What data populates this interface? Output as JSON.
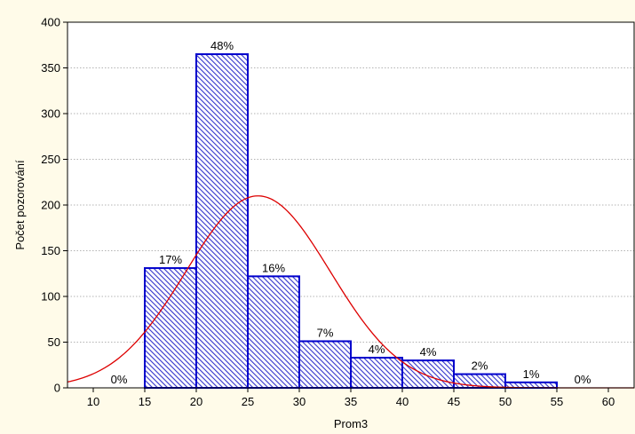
{
  "chart_data": {
    "type": "bar",
    "subtype": "histogram",
    "xlabel": "Prom3",
    "ylabel": "Počet pozorování",
    "xlim": [
      7.5,
      62.5
    ],
    "ylim": [
      0,
      400
    ],
    "xticks": [
      "10",
      "15",
      "20",
      "25",
      "30",
      "35",
      "40",
      "45",
      "50",
      "55",
      "60"
    ],
    "yticks": [
      "0",
      "50",
      "100",
      "150",
      "200",
      "250",
      "300",
      "350",
      "400"
    ],
    "grid": "horizontal-dotted",
    "bins": [
      {
        "start": 10,
        "end": 15,
        "value": 0,
        "label": "0%"
      },
      {
        "start": 15,
        "end": 20,
        "value": 131,
        "label": "17%"
      },
      {
        "start": 20,
        "end": 25,
        "value": 365,
        "label": "48%"
      },
      {
        "start": 25,
        "end": 30,
        "value": 122,
        "label": "16%"
      },
      {
        "start": 30,
        "end": 35,
        "value": 51,
        "label": "7%"
      },
      {
        "start": 35,
        "end": 40,
        "value": 33,
        "label": "4%"
      },
      {
        "start": 40,
        "end": 45,
        "value": 30,
        "label": "4%"
      },
      {
        "start": 45,
        "end": 50,
        "value": 15,
        "label": "2%"
      },
      {
        "start": 50,
        "end": 55,
        "value": 6,
        "label": "1%"
      },
      {
        "start": 55,
        "end": 60,
        "value": 0,
        "label": "0%"
      }
    ],
    "fit_curve": {
      "type": "normal",
      "mean": 26,
      "sd": 7,
      "peak": 210
    },
    "colors": {
      "bar_edge": "#0000cc",
      "bar_hatch": "#3333cc",
      "bar_fill": "#ffffff",
      "curve": "#dd0000",
      "background": "#fffbe9",
      "plot_area": "#ffffff",
      "grid": "#9a9a9a"
    }
  }
}
